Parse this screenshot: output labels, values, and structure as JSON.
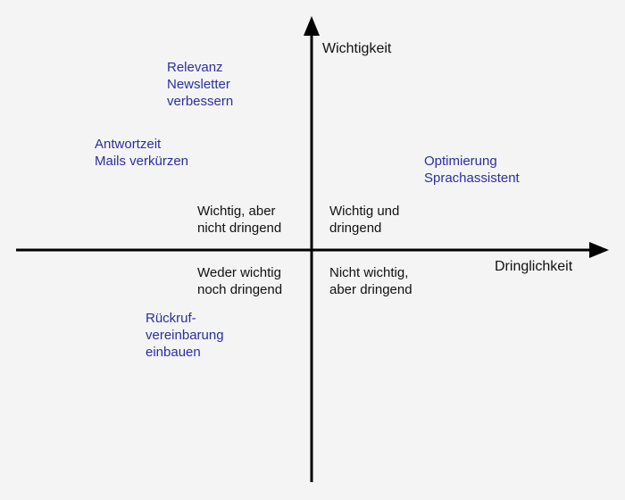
{
  "axes": {
    "y_label": "Wichtigkeit",
    "x_label": "Dringlichkeit",
    "color": "#000000"
  },
  "quadrants": {
    "top_left": [
      "Wichtig, aber",
      "nicht dringend"
    ],
    "top_right": [
      "Wichtig und",
      "dringend"
    ],
    "bottom_left": [
      "Weder wichtig",
      "noch dringend"
    ],
    "bottom_right": [
      "Nicht wichtig,",
      "aber dringend"
    ]
  },
  "items": [
    {
      "lines": [
        "Relevanz",
        "Newsletter",
        "verbessern"
      ]
    },
    {
      "lines": [
        "Antwortzeit",
        "Mails verkürzen"
      ]
    },
    {
      "lines": [
        "Optimierung",
        "Sprachassistent"
      ]
    },
    {
      "lines": [
        "Rückruf-",
        "vereinbarung",
        "einbauen"
      ]
    }
  ],
  "colors": {
    "background": "#f4f4f4",
    "item_text": "#2b2fa0",
    "label_text": "#111111"
  }
}
